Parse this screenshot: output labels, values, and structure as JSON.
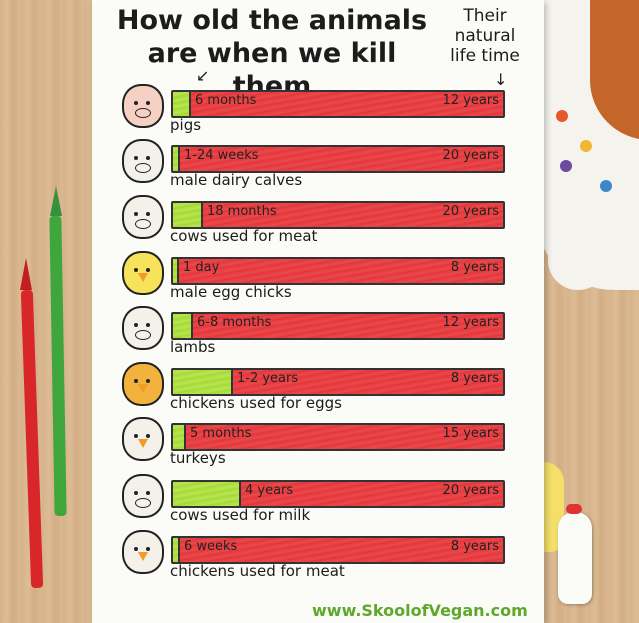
{
  "title_line1": "How old the animals",
  "title_line2": "are when we kill them",
  "natural_label_line1": "Their",
  "natural_label_line2": "natural",
  "natural_label_line3": "life time",
  "footer_url": "www.SkoolofVegan.com",
  "chart_data": {
    "type": "bar",
    "categories": [
      "pigs",
      "male dairy calves",
      "cows used for meat",
      "male egg chicks",
      "lambs",
      "chickens used for eggs",
      "turkeys",
      "cows used for milk",
      "chickens used for meat"
    ],
    "series": [
      {
        "name": "",
        "values": [
          0.5,
          0.08,
          1.5,
          0.003,
          0.58,
          1.5,
          0.42,
          4,
          0.12
        ]
      },
      {
        "name": "",
        "values": [
          12,
          20,
          20,
          8,
          12,
          8,
          15,
          20,
          8
        ]
      }
    ],
    "killed_labels": [
      "6 months",
      "1-24 weeks",
      "18 months",
      "1 day",
      "6-8 months",
      "1-2 years",
      "5 months",
      "4 years",
      "6 weeks"
    ],
    "natural_labels": [
      "12 years",
      "20 years",
      "20 years",
      "8 years",
      "12 years",
      "8 years",
      "15 years",
      "20 years",
      "8 years"
    ],
    "animal_icons": [
      "pig-icon",
      "calf-icon",
      "cow-icon",
      "chick-icon",
      "lamb-icon",
      "hen-icon",
      "turkey-icon",
      "dairy-cow-icon",
      "broiler-chicken-icon"
    ],
    "colors": {
      "killed": "#a9dd3c",
      "natural": "#e83a3f"
    }
  }
}
